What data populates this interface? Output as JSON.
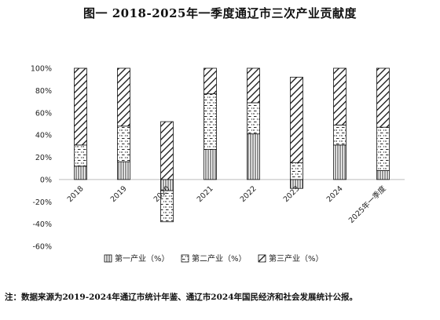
{
  "title": "图一 2018-2025年一季度通辽市三次产业贡献度",
  "note": "注：数据来源为2019-2024年通辽市统计年鉴、通辽市2024年国民经济和社会发展统计公报。",
  "chart_data": {
    "type": "bar",
    "stacked": true,
    "categories": [
      "2018",
      "2019",
      "2020",
      "2021",
      "2022",
      "2023",
      "2024",
      "2025年一季度"
    ],
    "series": [
      {
        "name": "第一产业（%）",
        "pattern": "vertical-lines",
        "values": [
          12,
          16,
          -10,
          27,
          41,
          -8,
          31,
          8
        ]
      },
      {
        "name": "第二产业（%）",
        "pattern": "dots-dashes",
        "values": [
          19,
          32,
          -28,
          50,
          28,
          15,
          18,
          39
        ]
      },
      {
        "name": "第三产业（%）",
        "pattern": "diagonal-hatch",
        "values": [
          69,
          52,
          52,
          23,
          31,
          77,
          51,
          53
        ]
      }
    ],
    "ylim": [
      -60,
      100
    ],
    "yticks": [
      -60,
      -40,
      -20,
      0,
      20,
      40,
      60,
      80,
      100
    ],
    "ytick_format": "{v}%",
    "grid": false,
    "legend": "bottom"
  }
}
